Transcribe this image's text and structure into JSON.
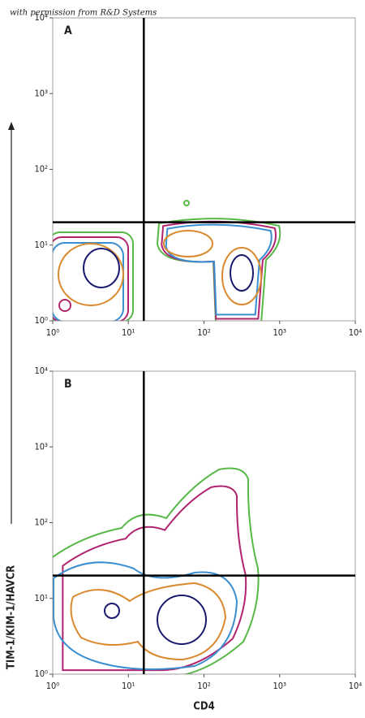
{
  "chart_data": [
    {
      "type": "contour",
      "panel_label": "A",
      "annotation": "with permission from R&D Systems",
      "ylabel": "TIM-1/KIM-1/HAVCR",
      "log_scale": true,
      "xlim": [
        1,
        10000
      ],
      "ylim": [
        1,
        10000
      ],
      "xticks": [
        {
          "value": 1,
          "label": "10⁰"
        },
        {
          "value": 10,
          "label": "10¹"
        },
        {
          "value": 100,
          "label": "10²"
        },
        {
          "value": 1000,
          "label": "10³"
        },
        {
          "value": 10000,
          "label": "10⁴"
        }
      ],
      "yticks": [
        {
          "value": 1,
          "label": "10⁰"
        },
        {
          "value": 10,
          "label": "10¹"
        },
        {
          "value": 100,
          "label": "10²"
        },
        {
          "value": 1000,
          "label": "10³"
        },
        {
          "value": 10000,
          "label": "10⁴"
        }
      ],
      "gates": {
        "x": 16,
        "y": 20
      }
    },
    {
      "type": "contour",
      "panel_label": "B",
      "xlabel": "CD4",
      "log_scale": true,
      "xlim": [
        1,
        10000
      ],
      "ylim": [
        1,
        10000
      ],
      "xticks": [
        {
          "value": 1,
          "label": "10⁰"
        },
        {
          "value": 10,
          "label": "10¹"
        },
        {
          "value": 100,
          "label": "10²"
        },
        {
          "value": 1000,
          "label": "10³"
        },
        {
          "value": 10000,
          "label": "10⁴"
        }
      ],
      "yticks": [
        {
          "value": 1,
          "label": "10⁰"
        },
        {
          "value": 10,
          "label": "10¹"
        },
        {
          "value": 100,
          "label": "10²"
        },
        {
          "value": 1000,
          "label": "10³"
        },
        {
          "value": 10000,
          "label": "10⁴"
        }
      ],
      "gates": {
        "x": 16,
        "y": 20
      }
    }
  ]
}
